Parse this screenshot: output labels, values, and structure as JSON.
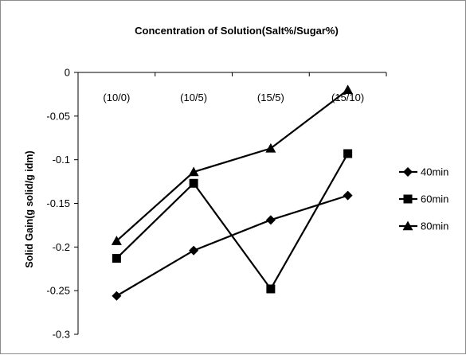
{
  "chart_data": {
    "type": "line",
    "title": "Concentration of Solution(Salt%/Sugar%)",
    "xlabel": "",
    "ylabel": "Solid Gain(g solid/g idm)",
    "categories": [
      "(10/0)",
      "(10/5)",
      "(15/5)",
      "(15/10)"
    ],
    "ylim": [
      -0.3,
      0
    ],
    "yticks": [
      0,
      -0.05,
      -0.1,
      -0.15,
      -0.2,
      -0.25,
      -0.3
    ],
    "ytick_labels": [
      "0",
      "-0.05",
      "-0.1",
      "-0.15",
      "-0.2",
      "-0.25",
      "-0.3"
    ],
    "x_axis_position": "top",
    "grid": false,
    "legend_position": "right",
    "series": [
      {
        "name": "40min",
        "marker": "diamond",
        "color": "#000000",
        "values": [
          -0.256,
          -0.204,
          -0.169,
          -0.141
        ]
      },
      {
        "name": "60min",
        "marker": "square",
        "color": "#000000",
        "values": [
          -0.213,
          -0.127,
          -0.248,
          -0.093
        ]
      },
      {
        "name": "80min",
        "marker": "triangle",
        "color": "#000000",
        "values": [
          -0.193,
          -0.114,
          -0.087,
          -0.02
        ]
      }
    ]
  }
}
